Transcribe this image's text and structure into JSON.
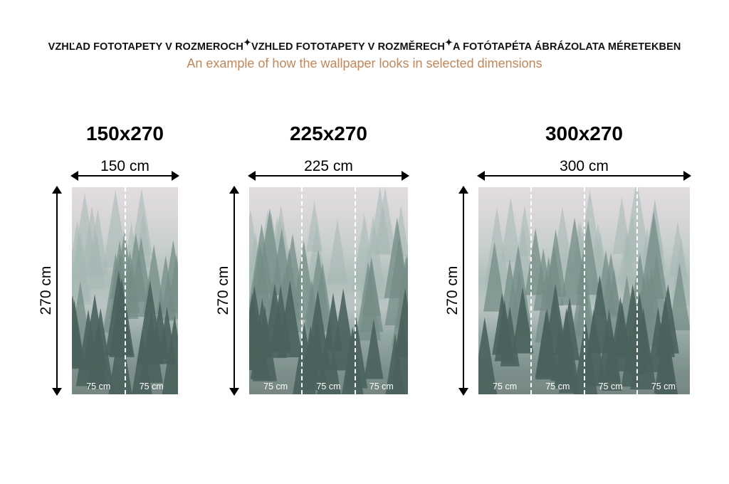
{
  "header": {
    "title_parts": [
      "VZHĽAD FOTOTAPETY V ROZMEROCH",
      "VZHLED FOTOTAPETY V ROZMĚRECH",
      "A FOTÓTAPÉTA ÁBRÁZOLATA MÉRETEKBEN"
    ],
    "separator_icon": "sparkle-icon",
    "subtitle": "An example of how the wallpaper looks in selected dimensions",
    "subtitle_color": "#c0875a"
  },
  "panels": [
    {
      "title": "150x270",
      "width_label": "150 cm",
      "height_label": "270 cm",
      "strips": [
        "75 cm",
        "75 cm"
      ]
    },
    {
      "title": "225x270",
      "width_label": "225 cm",
      "height_label": "270 cm",
      "strips": [
        "75 cm",
        "75 cm",
        "75 cm"
      ]
    },
    {
      "title": "300x270",
      "width_label": "300 cm",
      "height_label": "270 cm",
      "strips": [
        "75 cm",
        "75 cm",
        "75 cm",
        "75 cm"
      ]
    }
  ],
  "image": {
    "subject": "misty pine forest",
    "colors": {
      "sky": "#e9dde4",
      "trees": "#2f4a45"
    }
  }
}
